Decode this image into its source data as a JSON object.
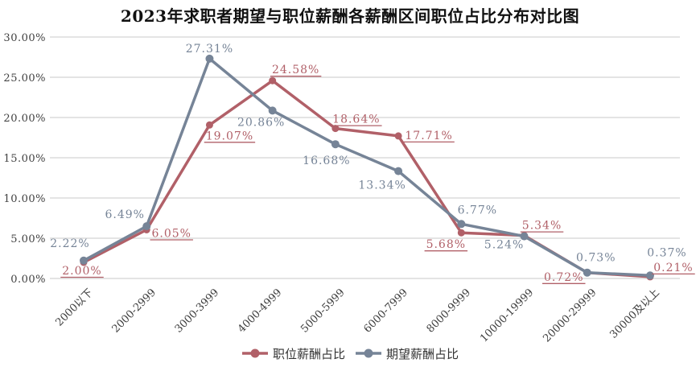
{
  "title": "2023年求职者期望与职位薪酬各薪酬区间职位占比分布对比图",
  "chart_data": {
    "type": "line",
    "title": "2023年求职者期望与职位薪酬各薪酬区间职位占比分布对比图",
    "categories": [
      "2000以下",
      "2000-2999",
      "3000-3999",
      "4000-4999",
      "5000-5999",
      "6000-7999",
      "8000-9999",
      "10000-19999",
      "20000-29999",
      "30000及以上"
    ],
    "series": [
      {
        "name": "职位薪酬占比",
        "color": "#b16068",
        "underline_labels": true,
        "values": [
          2.0,
          6.05,
          19.07,
          24.58,
          18.64,
          17.71,
          5.68,
          5.34,
          0.72,
          0.21
        ],
        "labels": [
          "2.00%",
          "6.05%",
          "19.07%",
          "24.58%",
          "18.64%",
          "17.71%",
          "5.68%",
          "5.34%",
          "0.72%",
          "0.21%"
        ],
        "label_offsets": [
          [
            -2,
            15
          ],
          [
            31,
            9
          ],
          [
            25,
            18
          ],
          [
            29,
            -9
          ],
          [
            26,
            -7
          ],
          [
            38,
            4
          ],
          [
            -19,
            19
          ],
          [
            22,
            -8
          ],
          [
            -29,
            10
          ],
          [
            29,
            -7
          ]
        ]
      },
      {
        "name": "期望薪酬占比",
        "color": "#768497",
        "underline_labels": false,
        "values": [
          2.22,
          6.49,
          27.31,
          20.86,
          16.68,
          13.34,
          6.77,
          5.24,
          0.73,
          0.37
        ],
        "labels": [
          "2.22%",
          "6.49%",
          "27.31%",
          "20.86%",
          "16.68%",
          "13.34%",
          "6.77%",
          "5.24%",
          "0.73%",
          "0.37%"
        ],
        "label_offsets": [
          [
            -17,
            -17
          ],
          [
            -27,
            -10
          ],
          [
            0,
            -8
          ],
          [
            -14,
            19
          ],
          [
            -11,
            25
          ],
          [
            -20,
            22
          ],
          [
            20,
            -13
          ],
          [
            -25,
            15
          ],
          [
            11,
            -14
          ],
          [
            21,
            -24
          ]
        ]
      }
    ],
    "y_ticks": [
      "0.00%",
      "5.00%",
      "10.00%",
      "15.00%",
      "20.00%",
      "25.00%",
      "30.00%"
    ],
    "ylim": [
      0,
      30
    ],
    "grid": true,
    "gridline_color": "#dcdcdc",
    "tick_color": "#404040",
    "legend_position": "bottom"
  }
}
